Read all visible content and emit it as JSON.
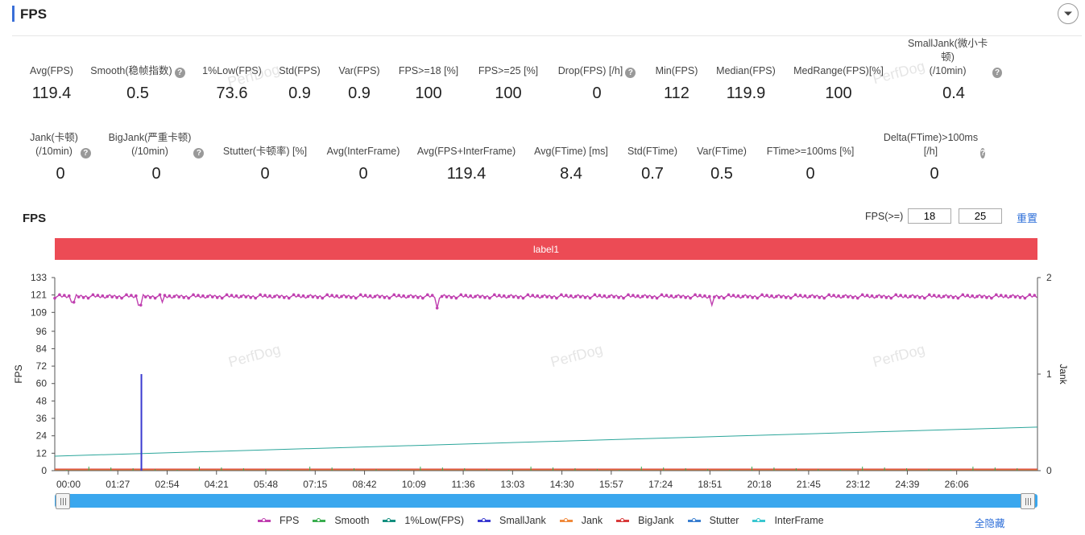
{
  "header": {
    "title": "FPS",
    "collapse_icon": "chevron-down-icon"
  },
  "stats_row1": [
    {
      "label": "Avg(FPS)",
      "value": "119.4",
      "help": false
    },
    {
      "label": "Smooth(稳帧指数)",
      "value": "0.5",
      "help": true
    },
    {
      "label": "1%Low(FPS)",
      "value": "73.6",
      "help": false
    },
    {
      "label": "Std(FPS)",
      "value": "0.9",
      "help": false
    },
    {
      "label": "Var(FPS)",
      "value": "0.9",
      "help": false
    },
    {
      "label": "FPS>=18 [%]",
      "value": "100",
      "help": false
    },
    {
      "label": "FPS>=25 [%]",
      "value": "100",
      "help": false
    },
    {
      "label": "Drop(FPS) [/h]",
      "value": "0",
      "help": true
    },
    {
      "label": "Min(FPS)",
      "value": "112",
      "help": false
    },
    {
      "label": "Median(FPS)",
      "value": "119.9",
      "help": false
    },
    {
      "label": "MedRange(FPS)[%]",
      "value": "100",
      "help": false
    },
    {
      "label": "SmallJank(微小卡顿)\n(/10min)",
      "value": "0.4",
      "help": true
    }
  ],
  "stats_row2": [
    {
      "label": "Jank(卡顿)\n(/10min)",
      "value": "0",
      "help": true
    },
    {
      "label": "BigJank(严重卡顿)\n(/10min)",
      "value": "0",
      "help": true
    },
    {
      "label": "Stutter(卡顿率) [%]",
      "value": "0",
      "help": false
    },
    {
      "label": "Avg(InterFrame)",
      "value": "0",
      "help": false
    },
    {
      "label": "Avg(FPS+InterFrame)",
      "value": "119.4",
      "help": false
    },
    {
      "label": "Avg(FTime) [ms]",
      "value": "8.4",
      "help": false
    },
    {
      "label": "Std(FTime)",
      "value": "0.7",
      "help": false
    },
    {
      "label": "Var(FTime)",
      "value": "0.5",
      "help": false
    },
    {
      "label": "FTime>=100ms [%]",
      "value": "0",
      "help": false
    },
    {
      "label": "Delta(FTime)>100ms [/h]",
      "value": "0",
      "help": true
    }
  ],
  "chart_section": {
    "title": "FPS",
    "threshold_label": "FPS(>=)",
    "threshold_1": "18",
    "threshold_2": "25",
    "reset_label": "重置",
    "label_band": "label1",
    "hide_all_label": "全隐藏",
    "watermark": "PerfDog"
  },
  "chart_data": {
    "type": "line",
    "ylabel": "FPS",
    "y2label": "Jank",
    "yticks": [
      0,
      12,
      24,
      36,
      48,
      60,
      72,
      84,
      96,
      109,
      121,
      133
    ],
    "ylim": [
      0,
      133
    ],
    "y2ticks": [
      0,
      1,
      2
    ],
    "y2lim": [
      0,
      2
    ],
    "xticks": [
      "00:00",
      "01:27",
      "02:54",
      "04:21",
      "05:48",
      "07:15",
      "08:42",
      "10:09",
      "11:36",
      "13:03",
      "14:30",
      "15:57",
      "17:24",
      "18:51",
      "20:18",
      "21:45",
      "23:12",
      "24:39",
      "26:06"
    ],
    "xlim_seconds": [
      0,
      1645
    ],
    "series": [
      {
        "name": "FPS",
        "color": "#c040b0",
        "approx_value": 120,
        "dips": [
          {
            "t": 30,
            "v": 116
          },
          {
            "t": 143,
            "v": 114
          },
          {
            "t": 180,
            "v": 116
          },
          {
            "t": 640,
            "v": 112
          },
          {
            "t": 1100,
            "v": 114
          }
        ]
      },
      {
        "name": "Smooth",
        "color": "#3aae4f",
        "approx_value": 0
      },
      {
        "name": "1%Low(FPS)",
        "color": "#138f7f",
        "approx_value": 0
      },
      {
        "name": "SmallJank",
        "color": "#3a3ad0",
        "events": [
          {
            "t": 145,
            "v": 1
          }
        ]
      },
      {
        "name": "Jank",
        "color": "#f08a3c",
        "approx_value": 0
      },
      {
        "name": "BigJank",
        "color": "#d83a3a",
        "approx_value": 0
      },
      {
        "name": "Stutter",
        "color": "#3a7fd0",
        "approx_value": 0
      },
      {
        "name": "InterFrame",
        "color": "#3ac7d0",
        "approx_value": 0
      }
    ],
    "grid": false,
    "legend_position": "bottom"
  }
}
